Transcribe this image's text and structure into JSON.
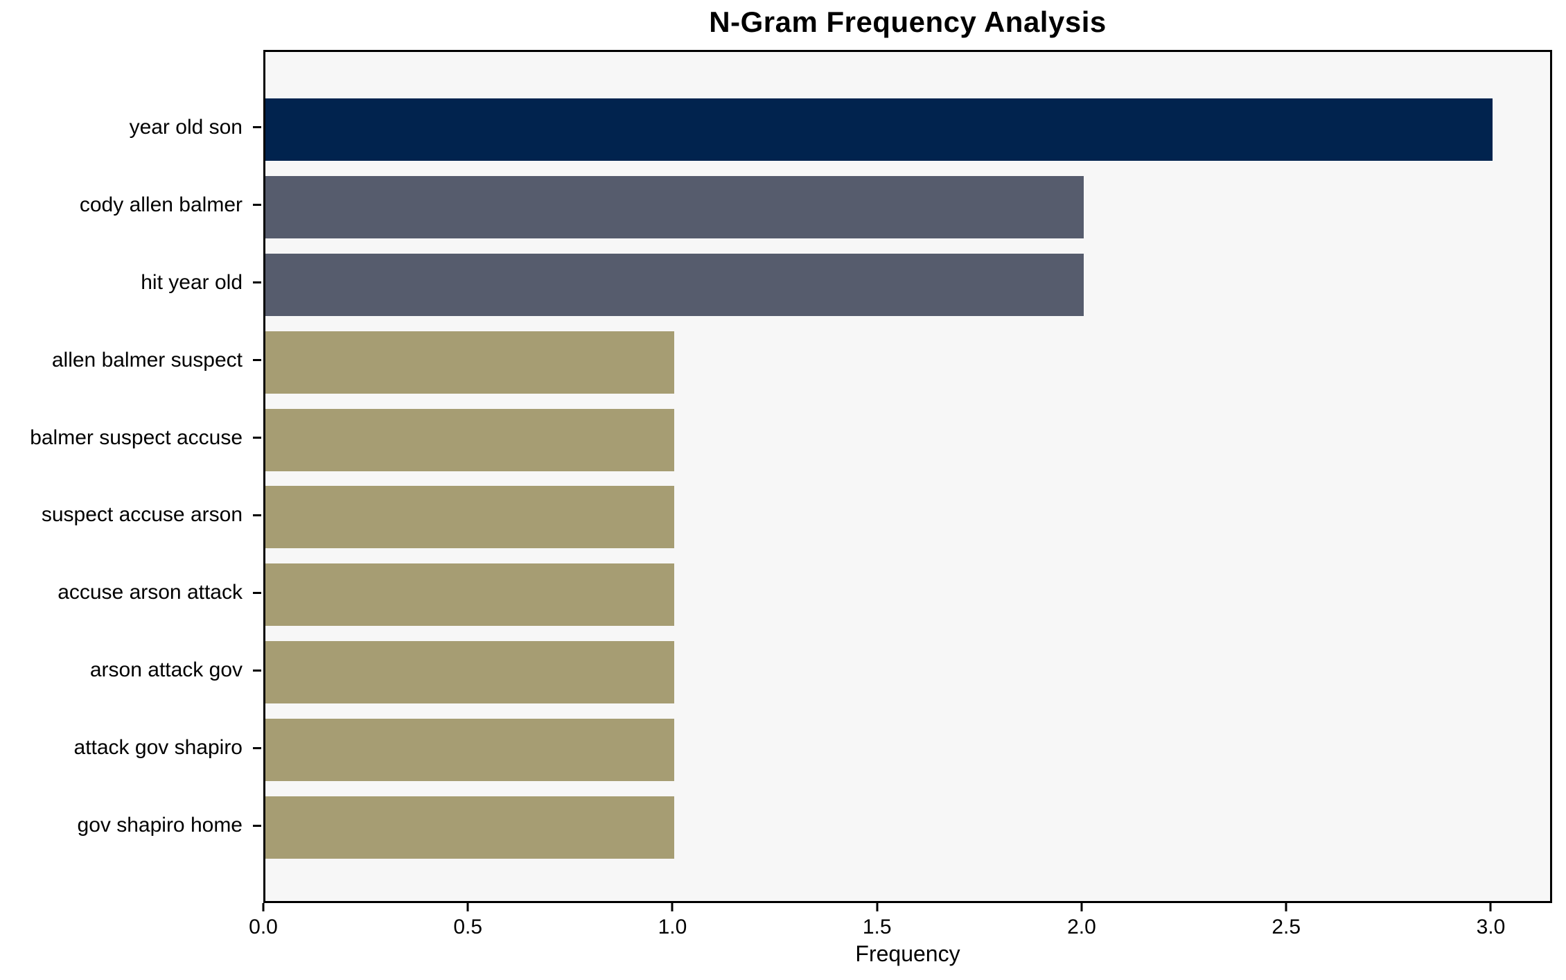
{
  "title": "N-Gram Frequency Analysis",
  "colors": {
    "bar_top": "#01234e",
    "bar_mid": "#565c6d",
    "bar_low": "#a69d73",
    "plot_background": "#f7f7f7",
    "frame": "#000000",
    "page_background": "#ffffff"
  },
  "chart_data": {
    "type": "bar",
    "orientation": "horizontal",
    "title": "N-Gram Frequency Analysis",
    "xlabel": "Frequency",
    "ylabel": "",
    "categories": [
      "year old son",
      "cody allen balmer",
      "hit year old",
      "allen balmer suspect",
      "balmer suspect accuse",
      "suspect accuse arson",
      "accuse arson attack",
      "arson attack gov",
      "attack gov shapiro",
      "gov shapiro home"
    ],
    "values": [
      3,
      2,
      2,
      1,
      1,
      1,
      1,
      1,
      1,
      1
    ],
    "bar_colors": [
      "#01234e",
      "#565c6d",
      "#565c6d",
      "#a69d73",
      "#a69d73",
      "#a69d73",
      "#a69d73",
      "#a69d73",
      "#a69d73",
      "#a69d73"
    ],
    "xlim": [
      0,
      3.15
    ],
    "xticks": [
      {
        "value": 0.0,
        "label": "0.0"
      },
      {
        "value": 0.5,
        "label": "0.5"
      },
      {
        "value": 1.0,
        "label": "1.0"
      },
      {
        "value": 1.5,
        "label": "1.5"
      },
      {
        "value": 2.0,
        "label": "2.0"
      },
      {
        "value": 2.5,
        "label": "2.5"
      },
      {
        "value": 3.0,
        "label": "3.0"
      }
    ],
    "grid": false,
    "legend": null
  }
}
